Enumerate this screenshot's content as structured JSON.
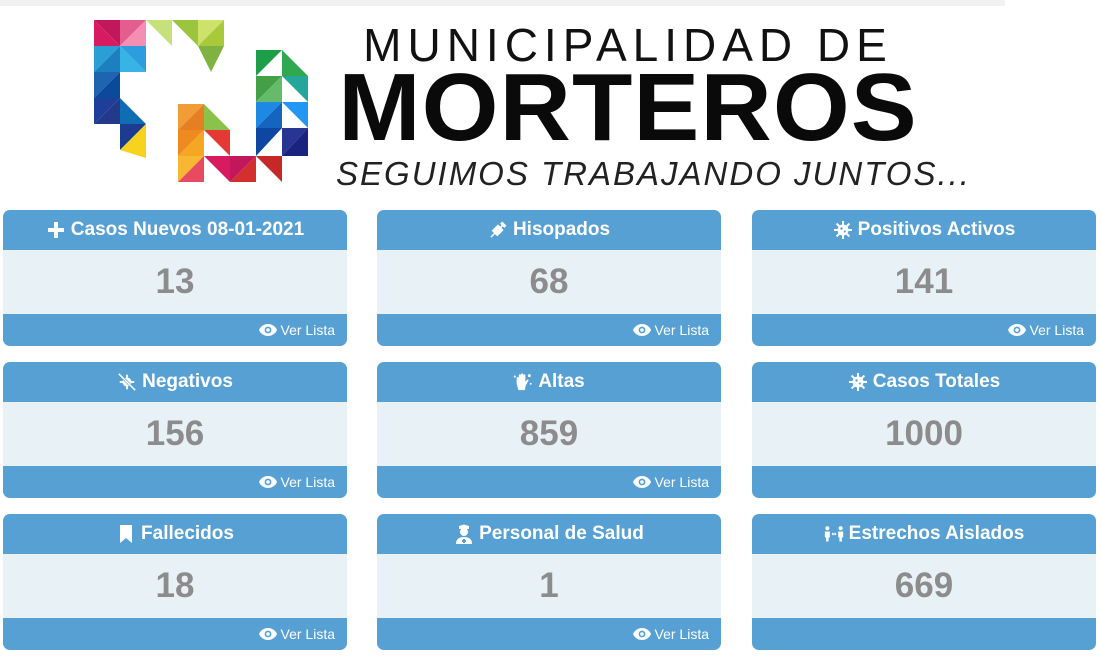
{
  "header": {
    "line1": "MUNICIPALIDAD DE",
    "line2": "MORTEROS",
    "line3": "SEGUIMOS TRABAJANDO JUNTOS..."
  },
  "ver_lista_label": "Ver Lista",
  "cards": [
    {
      "title": "Casos Nuevos 08-01-2021",
      "value": "13",
      "icon": "plus-icon",
      "has_link": true
    },
    {
      "title": "Hisopados",
      "value": "68",
      "icon": "syringe-icon",
      "has_link": true
    },
    {
      "title": "Positivos Activos",
      "value": "141",
      "icon": "virus-icon",
      "has_link": true
    },
    {
      "title": "Negativos",
      "value": "156",
      "icon": "virus-slash-icon",
      "has_link": true
    },
    {
      "title": "Altas",
      "value": "859",
      "icon": "hands-wash-icon",
      "has_link": true
    },
    {
      "title": "Casos Totales",
      "value": "1000",
      "icon": "virus-icon",
      "has_link": false
    },
    {
      "title": "Fallecidos",
      "value": "18",
      "icon": "bookmark-icon",
      "has_link": true
    },
    {
      "title": "Personal de Salud",
      "value": "1",
      "icon": "user-nurse-icon",
      "has_link": true
    },
    {
      "title": "Estrechos Aislados",
      "value": "669",
      "icon": "people-arrows-icon",
      "has_link": false
    }
  ],
  "colors": {
    "card_header": "#56a0d3",
    "card_body": "#e8f1f6",
    "value_text": "#8c8c8c"
  }
}
